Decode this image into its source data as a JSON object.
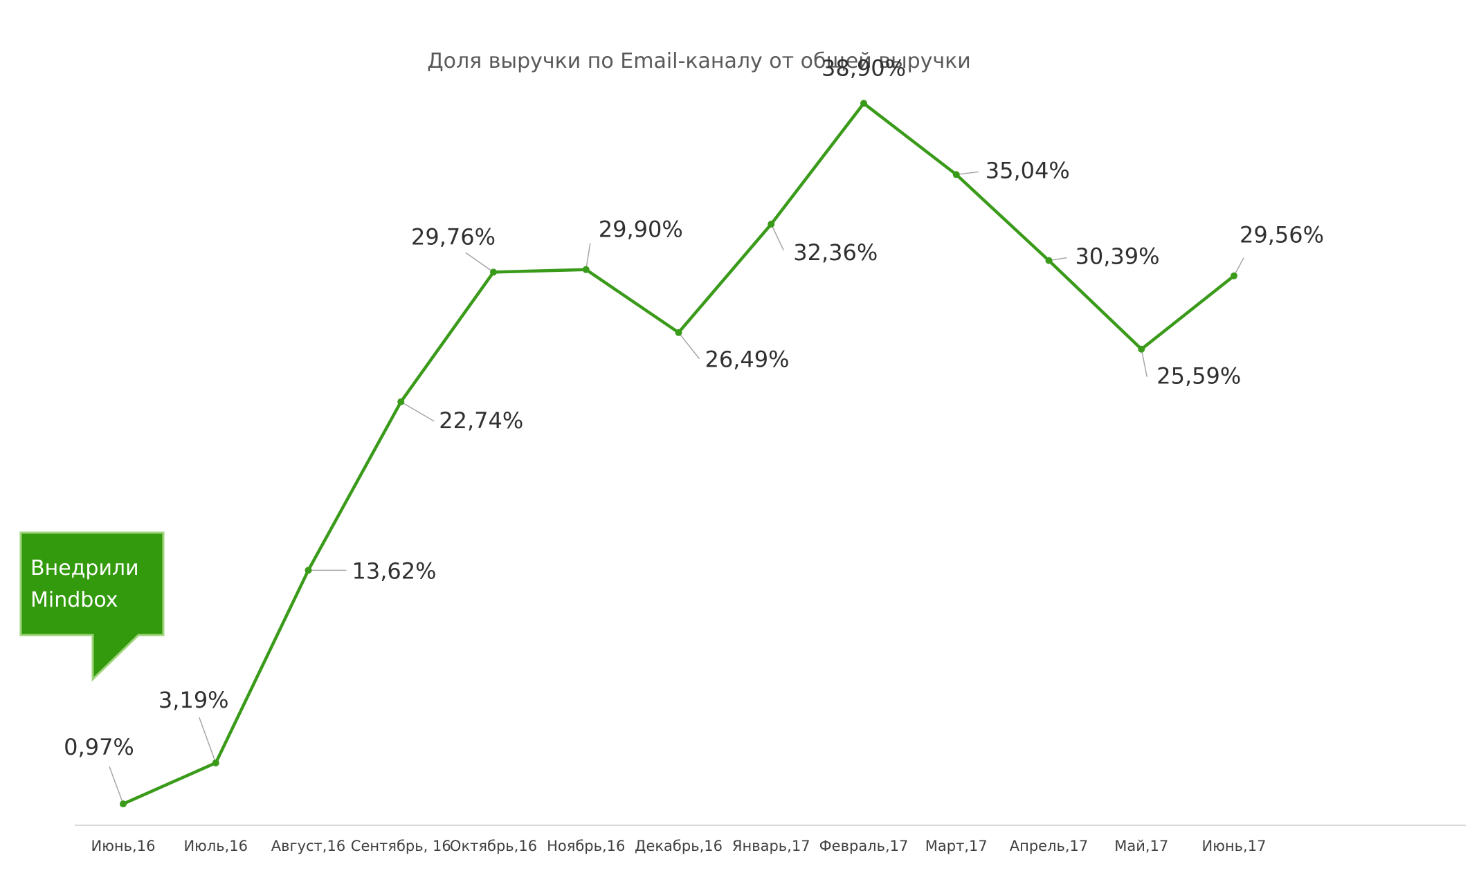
{
  "chart_data": {
    "type": "line",
    "title": "Доля выручки по Email-каналу от общей выручки",
    "xlabel": "",
    "ylabel": "",
    "ylim": [
      0,
      45
    ],
    "grid": false,
    "legend": "none",
    "categories": [
      "Июнь,16",
      "Июль,16",
      "Август,16",
      "Сентябрь, 16",
      "Октябрь,16",
      "Ноябрь,16",
      "Декабрь,16",
      "Январь,17",
      "Февраль,17",
      "Март,17",
      "Апрель,17",
      "Май,17",
      "Июнь,17"
    ],
    "series": [
      {
        "values": [
          0.97,
          3.19,
          13.62,
          22.74,
          29.76,
          29.9,
          26.49,
          32.36,
          38.9,
          35.04,
          30.39,
          25.59,
          29.56
        ],
        "labels": [
          "0,97%",
          "3,19%",
          "13,62%",
          "22,74%",
          "29,76%",
          "29,90%",
          "26,49%",
          "32,36%",
          "38,90%",
          "35,04%",
          "30,39%",
          "25,59%",
          "29,56%"
        ]
      }
    ],
    "annotation": {
      "lines": [
        "Внедрили",
        "Mindbox"
      ]
    }
  },
  "colors": {
    "line": "#3a9a1a",
    "axis": "#d9d9d9",
    "leader": "#a6a6a6",
    "callout_fill": "#339a0e",
    "callout_border": "#9ed47a"
  }
}
